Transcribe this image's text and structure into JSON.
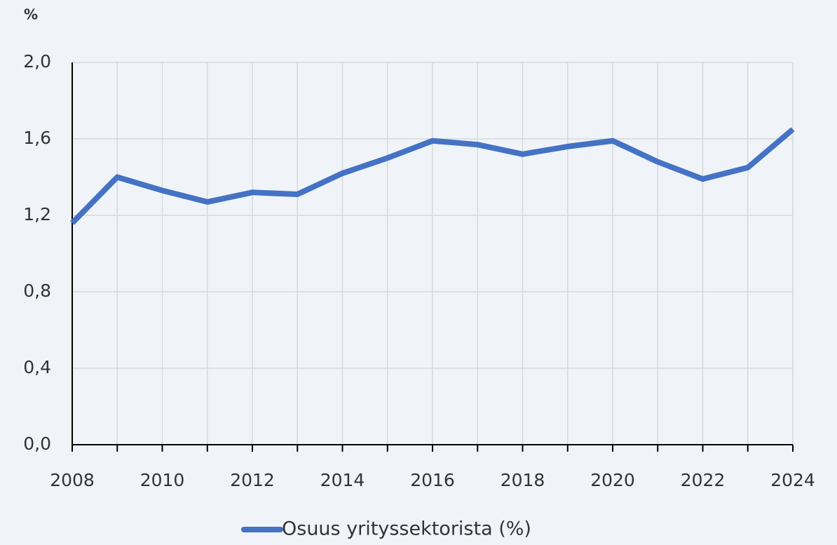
{
  "chart_data": {
    "type": "line",
    "y_label": "%",
    "x": [
      2008,
      2009,
      2010,
      2011,
      2012,
      2013,
      2014,
      2015,
      2016,
      2017,
      2018,
      2019,
      2020,
      2021,
      2022,
      2023,
      2024
    ],
    "series": [
      {
        "name": "Osuus yrityssektorista (%)",
        "color": "#4472c4",
        "values": [
          1.16,
          1.4,
          1.33,
          1.27,
          1.32,
          1.31,
          1.42,
          1.5,
          1.59,
          1.57,
          1.52,
          1.56,
          1.59,
          1.48,
          1.39,
          1.45,
          1.65
        ]
      }
    ],
    "xlim": [
      2008,
      2024
    ],
    "xticks": [
      2008,
      2010,
      2012,
      2014,
      2016,
      2018,
      2020,
      2022,
      2024
    ],
    "ylim": [
      0,
      2
    ],
    "yticks": [
      {
        "value": 0,
        "label": "0,0"
      },
      {
        "value": 0.4,
        "label": "0,4"
      },
      {
        "value": 0.8,
        "label": "0,8"
      },
      {
        "value": 1.2,
        "label": "1,2"
      },
      {
        "value": 1.6,
        "label": "1,6"
      },
      {
        "value": 2,
        "label": "2,0"
      }
    ],
    "grid": true,
    "legend": "bottom"
  }
}
